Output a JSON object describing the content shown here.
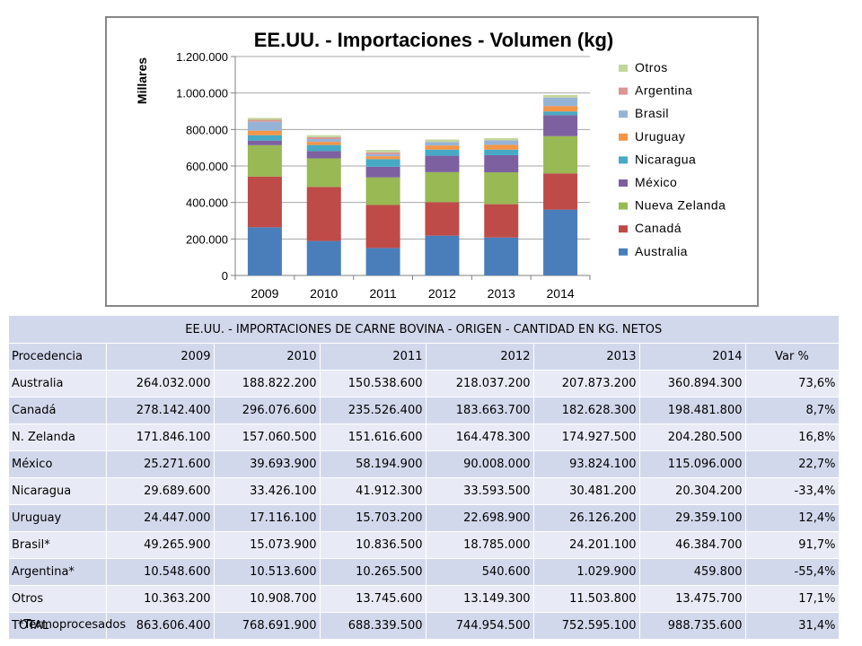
{
  "chart_data": {
    "type": "bar",
    "stacked": true,
    "title": "EE.UU. - Importaciones - Volumen (kg)",
    "ylabel": "Millares",
    "xlabel": "",
    "ylim": [
      0,
      1200000
    ],
    "yticks": [
      "0",
      "200.000",
      "400.000",
      "600.000",
      "800.000",
      "1.000.000",
      "1.200.000"
    ],
    "ytick_values": [
      0,
      200000,
      400000,
      600000,
      800000,
      1000000,
      1200000
    ],
    "grid": true,
    "legend_position": "right",
    "categories": [
      "2009",
      "2010",
      "2011",
      "2012",
      "2013",
      "2014"
    ],
    "series": [
      {
        "name": "Australia",
        "color": "#4a7ebb",
        "values": [
          264032,
          188822,
          150539,
          218037,
          207873,
          360894
        ]
      },
      {
        "name": "Canadá",
        "color": "#be4b48",
        "values": [
          278142,
          296077,
          235526,
          183664,
          182628,
          198482
        ]
      },
      {
        "name": "Nueva Zelanda",
        "color": "#98b954",
        "values": [
          171846,
          157061,
          151617,
          164478,
          174928,
          204281
        ]
      },
      {
        "name": "México",
        "color": "#7d60a0",
        "values": [
          25272,
          39694,
          58195,
          90008,
          93824,
          115096
        ]
      },
      {
        "name": "Nicaragua",
        "color": "#46aac5",
        "values": [
          29690,
          33426,
          41912,
          33594,
          30481,
          20304
        ]
      },
      {
        "name": "Uruguay",
        "color": "#f69546",
        "values": [
          24447,
          17116,
          15703,
          22699,
          26126,
          29359
        ]
      },
      {
        "name": "Brasil",
        "color": "#95b3d7",
        "values": [
          49266,
          15074,
          10837,
          18785,
          24201,
          46385
        ]
      },
      {
        "name": "Argentina",
        "color": "#d99694",
        "values": [
          10549,
          10514,
          10266,
          541,
          1030,
          460
        ]
      },
      {
        "name": "Otros",
        "color": "#c3d69b",
        "values": [
          10363,
          10909,
          13746,
          13149,
          11504,
          13476
        ]
      }
    ]
  },
  "table": {
    "title": "EE.UU. - IMPORTACIONES DE CARNE BOVINA - ORIGEN - CANTIDAD EN KG. NETOS",
    "headers": [
      "Procedencia",
      "2009",
      "2010",
      "2011",
      "2012",
      "2013",
      "2014",
      "Var %"
    ],
    "rows": [
      [
        "Australia",
        "264.032.000",
        "188.822.200",
        "150.538.600",
        "218.037.200",
        "207.873.200",
        "360.894.300",
        "73,6%"
      ],
      [
        "Canadá",
        "278.142.400",
        "296.076.600",
        "235.526.400",
        "183.663.700",
        "182.628.300",
        "198.481.800",
        "8,7%"
      ],
      [
        "N. Zelanda",
        "171.846.100",
        "157.060.500",
        "151.616.600",
        "164.478.300",
        "174.927.500",
        "204.280.500",
        "16,8%"
      ],
      [
        "México",
        "25.271.600",
        "39.693.900",
        "58.194.900",
        "90.008.000",
        "93.824.100",
        "115.096.000",
        "22,7%"
      ],
      [
        "Nicaragua",
        "29.689.600",
        "33.426.100",
        "41.912.300",
        "33.593.500",
        "30.481.200",
        "20.304.200",
        "-33,4%"
      ],
      [
        "Uruguay",
        "24.447.000",
        "17.116.100",
        "15.703.200",
        "22.698.900",
        "26.126.200",
        "29.359.100",
        "12,4%"
      ],
      [
        "Brasil*",
        "49.265.900",
        "15.073.900",
        "10.836.500",
        "18.785.000",
        "24.201.100",
        "46.384.700",
        "91,7%"
      ],
      [
        "Argentina*",
        "10.548.600",
        "10.513.600",
        "10.265.500",
        "540.600",
        "1.029.900",
        "459.800",
        "-55,4%"
      ],
      [
        "Otros",
        "10.363.200",
        "10.908.700",
        "13.745.600",
        "13.149.300",
        "11.503.800",
        "13.475.700",
        "17,1%"
      ],
      [
        "TOTAL",
        "863.606.400",
        "768.691.900",
        "688.339.500",
        "744.954.500",
        "752.595.100",
        "988.735.600",
        "31,4%"
      ]
    ]
  },
  "footnote": "*Termoprocesados"
}
